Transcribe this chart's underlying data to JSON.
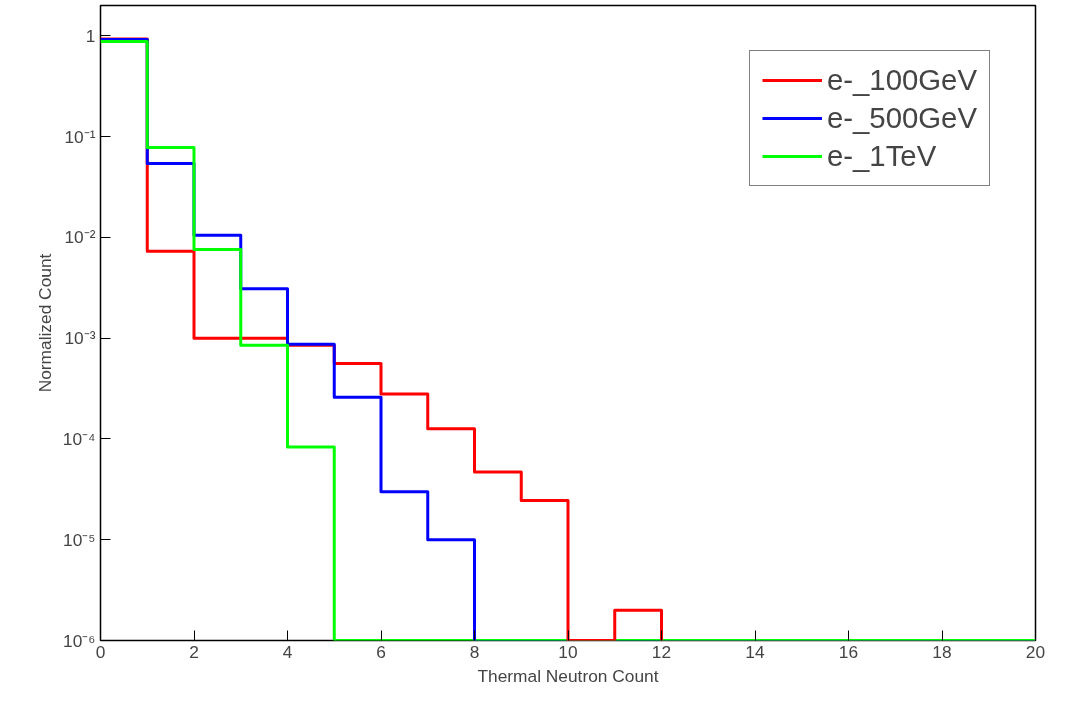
{
  "chart_data": {
    "type": "histogram",
    "xlabel": "Thermal Neutron Count",
    "ylabel": "Normalized Count",
    "bins": [
      0,
      1,
      2,
      3,
      4,
      5,
      6,
      7,
      8,
      9,
      10,
      11,
      12,
      13,
      14,
      15,
      16,
      17,
      18,
      19,
      20
    ],
    "series": [
      {
        "name": "e-_100GeV",
        "color": "#ff0000",
        "values": [
          0.93,
          0.0073,
          0.001,
          0.001,
          0.00085,
          0.00056,
          0.00028,
          0.000126,
          4.7e-05,
          2.45e-05,
          1e-06,
          2e-06,
          1e-06,
          1e-06,
          1e-06,
          1e-06,
          1e-06,
          1e-06,
          1e-06,
          1e-06
        ]
      },
      {
        "name": "e-_500GeV",
        "color": "#0000ff",
        "values": [
          0.92,
          0.054,
          0.0105,
          0.0031,
          0.00087,
          0.00026,
          3e-05,
          1e-05,
          1e-06,
          1e-06,
          1e-06,
          1e-06,
          1e-06,
          1e-06,
          1e-06,
          1e-06,
          1e-06,
          1e-06,
          1e-06,
          1e-06
        ]
      },
      {
        "name": "e-_1TeV",
        "color": "#00ff00",
        "values": [
          0.88,
          0.078,
          0.0076,
          0.00085,
          8.3e-05,
          1e-06,
          1e-06,
          1e-06,
          1e-06,
          1e-06,
          1e-06,
          1e-06,
          1e-06,
          1e-06,
          1e-06,
          1e-06,
          1e-06,
          1e-06,
          1e-06,
          1e-06
        ]
      }
    ],
    "xlim": [
      0,
      20
    ],
    "xticks": [
      0,
      2,
      4,
      6,
      8,
      10,
      12,
      14,
      16,
      18,
      20
    ],
    "ylim": [
      1e-06,
      2
    ],
    "log": true,
    "yticks": [
      {
        "value": 1e-06,
        "label": "10⁻⁶"
      },
      {
        "value": 1e-05,
        "label": "10⁻⁵"
      },
      {
        "value": 0.0001,
        "label": "10⁻⁴"
      },
      {
        "value": 0.001,
        "label": "10⁻³"
      },
      {
        "value": 0.01,
        "label": "10⁻²"
      },
      {
        "value": 0.1,
        "label": "10⁻¹"
      },
      1
    ],
    "grid": false,
    "legend": "top right"
  }
}
